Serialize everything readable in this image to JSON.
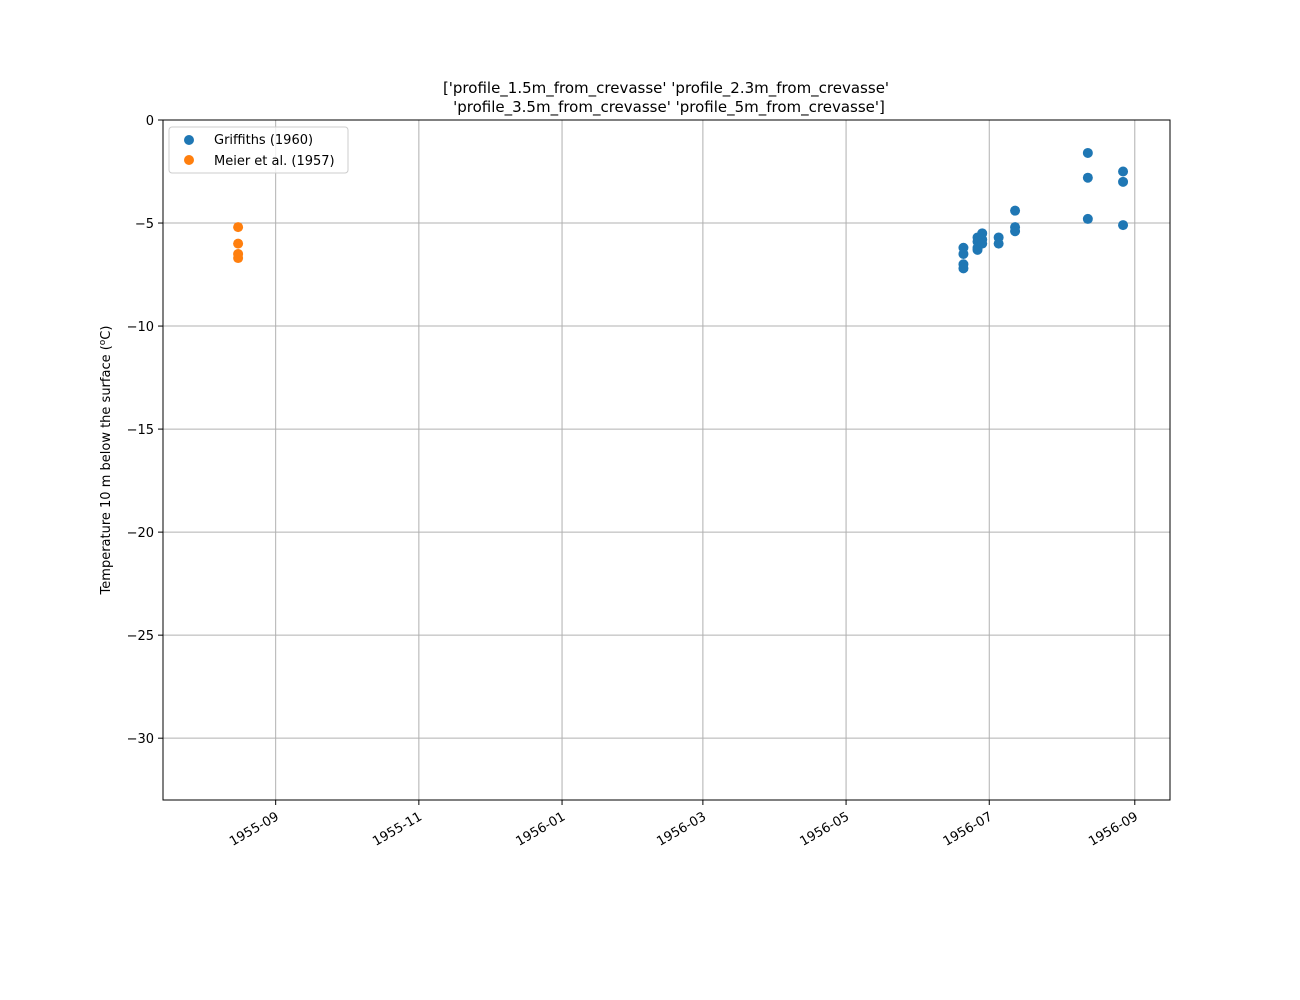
{
  "chart_data": {
    "type": "scatter",
    "title_lines": [
      "['profile_1.5m_from_crevasse' 'profile_2.3m_from_crevasse'",
      "'profile_3.5m_from_crevasse' 'profile_5m_from_crevasse']"
    ],
    "xlabel": "",
    "ylabel": "Temperature 10 m below the surface (",
    "ylabel_unit_sup": "o",
    "ylabel_unit_rest": "C)",
    "x_type": "date",
    "xlim": [
      "1955-07-15",
      "1956-09-16"
    ],
    "ylim": [
      -33,
      0
    ],
    "x_ticks": [
      "1955-09-01",
      "1955-11-01",
      "1956-01-01",
      "1956-03-01",
      "1956-05-01",
      "1956-07-01",
      "1956-09-01"
    ],
    "x_tick_labels": [
      "1955-09",
      "1955-11",
      "1956-01",
      "1956-03",
      "1956-05",
      "1956-07",
      "1956-09"
    ],
    "y_ticks": [
      0,
      -5,
      -10,
      -15,
      -20,
      -25,
      -30
    ],
    "y_tick_labels": [
      "0",
      "−5",
      "−10",
      "−15",
      "−20",
      "−25",
      "−30"
    ],
    "grid": true,
    "legend_position": "top-left",
    "series": [
      {
        "name": "Griffiths (1960)",
        "color": "#1f77b4",
        "points": [
          {
            "x": "1956-06-20",
            "y": -6.2
          },
          {
            "x": "1956-06-20",
            "y": -6.5
          },
          {
            "x": "1956-06-20",
            "y": -7.0
          },
          {
            "x": "1956-06-20",
            "y": -7.2
          },
          {
            "x": "1956-06-26",
            "y": -5.7
          },
          {
            "x": "1956-06-26",
            "y": -5.9
          },
          {
            "x": "1956-06-26",
            "y": -6.2
          },
          {
            "x": "1956-06-26",
            "y": -6.3
          },
          {
            "x": "1956-06-28",
            "y": -5.5
          },
          {
            "x": "1956-06-28",
            "y": -5.8
          },
          {
            "x": "1956-06-28",
            "y": -6.0
          },
          {
            "x": "1956-07-05",
            "y": -5.7
          },
          {
            "x": "1956-07-05",
            "y": -6.0
          },
          {
            "x": "1956-07-12",
            "y": -4.4
          },
          {
            "x": "1956-07-12",
            "y": -5.2
          },
          {
            "x": "1956-07-12",
            "y": -5.4
          },
          {
            "x": "1956-08-12",
            "y": -1.6
          },
          {
            "x": "1956-08-12",
            "y": -2.8
          },
          {
            "x": "1956-08-12",
            "y": -4.8
          },
          {
            "x": "1956-08-27",
            "y": -2.5
          },
          {
            "x": "1956-08-27",
            "y": -3.0
          },
          {
            "x": "1956-08-27",
            "y": -5.1
          }
        ]
      },
      {
        "name": "Meier et al. (1957)",
        "color": "#ff7f0e",
        "points": [
          {
            "x": "1955-08-16",
            "y": -5.2
          },
          {
            "x": "1955-08-16",
            "y": -6.0
          },
          {
            "x": "1955-08-16",
            "y": -6.5
          },
          {
            "x": "1955-08-16",
            "y": -6.7
          }
        ]
      }
    ]
  }
}
